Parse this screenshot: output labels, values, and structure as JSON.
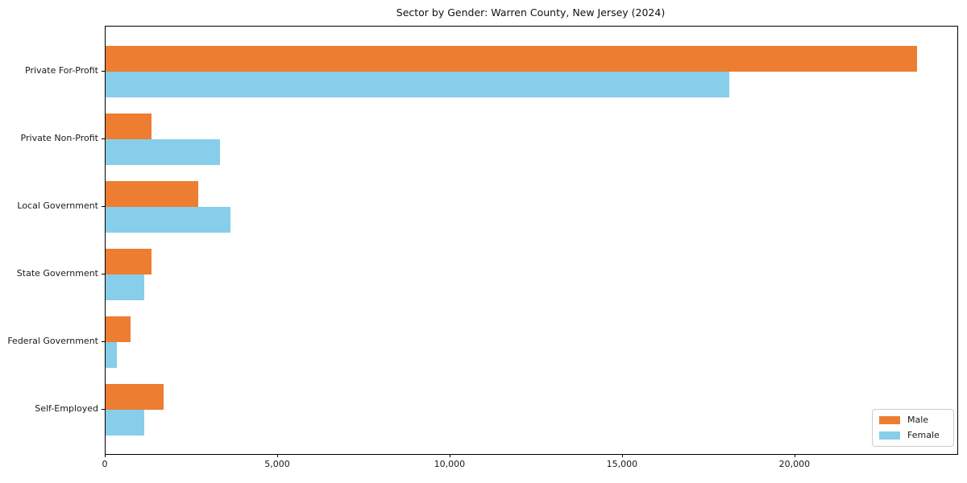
{
  "chart_data": {
    "type": "bar",
    "orientation": "horizontal",
    "title": "Sector by Gender: Warren County, New Jersey (2024)",
    "categories": [
      "Private For-Profit",
      "Private Non-Profit",
      "Local Government",
      "State Government",
      "Federal Government",
      "Self-Employed"
    ],
    "series": [
      {
        "name": "Male",
        "color": "#ED7D31",
        "values": [
          23530,
          1330,
          2690,
          1330,
          725,
          1680
        ]
      },
      {
        "name": "Female",
        "color": "#87CEEB",
        "values": [
          18080,
          3320,
          3630,
          1120,
          330,
          1120
        ]
      }
    ],
    "xlabel": "",
    "ylabel": "",
    "xlim": [
      0,
      24700
    ],
    "x_ticks": [
      {
        "value": 0,
        "label": "0"
      },
      {
        "value": 5000,
        "label": "5,000"
      },
      {
        "value": 10000,
        "label": "10,000"
      },
      {
        "value": 15000,
        "label": "15,000"
      },
      {
        "value": 20000,
        "label": "20,000"
      }
    ],
    "legend": {
      "position": "lower right",
      "entries": [
        {
          "label": "Male",
          "color": "#ED7D31"
        },
        {
          "label": "Female",
          "color": "#87CEEB"
        }
      ]
    },
    "grid": false,
    "axis_color": "#000000"
  }
}
